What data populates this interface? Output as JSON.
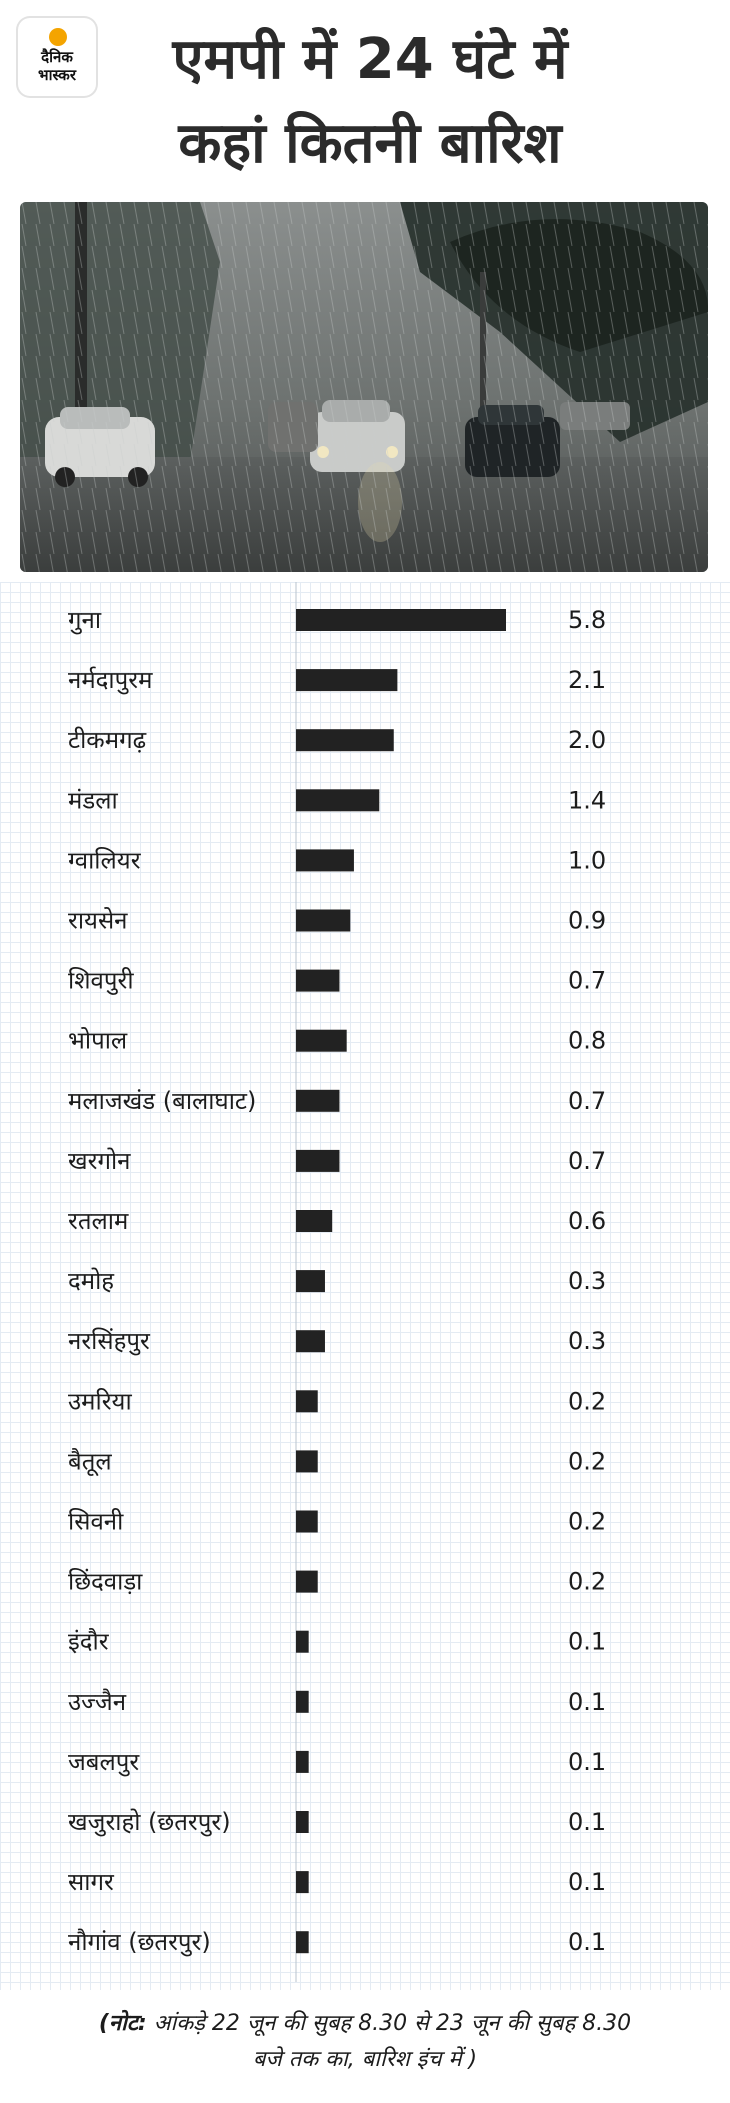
{
  "brand": {
    "line1": "दैनिक",
    "line2": "भास्कर",
    "color": "#f4a400"
  },
  "title": {
    "line1": "एमपी में 24 घंटे में",
    "line2": "कहां कितनी बारिश"
  },
  "photo": {
    "description_icon": "rain-street-photo"
  },
  "chart_data": {
    "type": "bar",
    "orientation": "horizontal",
    "bar_color": "#222222",
    "categories": [
      "गुना",
      "नर्मदापुरम",
      "टीकमगढ़",
      "मंडला",
      "ग्वालियर",
      "रायसेन",
      "शिवपुरी",
      "भोपाल",
      "मलाजखंड (बालाघाट)",
      "खरगोन",
      "रतलाम",
      "दमोह",
      "नरसिंहपुर",
      "उमरिया",
      "बैतूल",
      "सिवनी",
      "छिंदवाड़ा",
      "इंदौर",
      "उज्जैन",
      "जबलपुर",
      "खजुराहो (छतरपुर)",
      "सागर",
      "नौगांव (छतरपुर)"
    ],
    "values": [
      5.8,
      2.1,
      2.0,
      1.4,
      1.0,
      0.9,
      0.7,
      0.8,
      0.7,
      0.7,
      0.6,
      0.3,
      0.3,
      0.2,
      0.2,
      0.2,
      0.2,
      0.1,
      0.1,
      0.1,
      0.1,
      0.1,
      0.1
    ],
    "value_labels": [
      "5.8",
      "2.1",
      "2.0",
      "1.4",
      "1.0",
      "0.9",
      "0.7",
      "0.8",
      "0.7",
      "0.7",
      "0.6",
      "0.3",
      "0.3",
      "0.2",
      "0.2",
      "0.2",
      "0.2",
      "0.1",
      "0.1",
      "0.1",
      "0.1",
      "0.1",
      "0.1"
    ],
    "bar_lengths_relative": [
      5.8,
      2.8,
      2.7,
      2.3,
      1.6,
      1.5,
      1.2,
      1.4,
      1.2,
      1.2,
      1.0,
      0.8,
      0.8,
      0.6,
      0.6,
      0.6,
      0.6,
      0.35,
      0.35,
      0.35,
      0.35,
      0.35,
      0.35
    ],
    "grid": true,
    "legend": "none"
  },
  "note": {
    "prefix": "(नोट:",
    "line1": " आंकड़े 22 जून की सुबह 8.30 से 23 जून की सुबह 8.30",
    "line2": "बजे तक का, बारिश इंच में )"
  }
}
